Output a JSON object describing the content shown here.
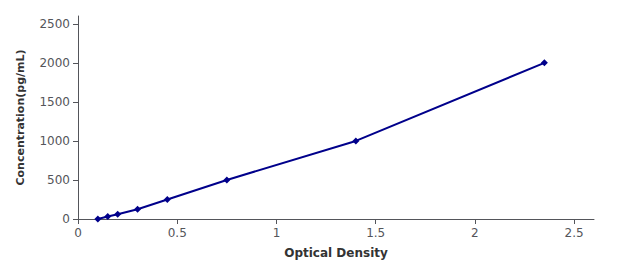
{
  "chart_data": {
    "type": "line",
    "x": [
      0.1,
      0.15,
      0.2,
      0.3,
      0.45,
      0.75,
      1.4,
      2.35
    ],
    "values": [
      0,
      31,
      62,
      125,
      250,
      500,
      1000,
      2000
    ],
    "color": "#00008B",
    "marker": "diamond",
    "line_style": "solid",
    "xlabel": "Optical Density",
    "ylabel": "Concentration(pg/mL)",
    "xlim": [
      0,
      2.6
    ],
    "ylim": [
      0,
      2600
    ],
    "xticks": [
      0,
      0.5,
      1,
      1.5,
      2,
      2.5
    ],
    "yticks": [
      0,
      500,
      1000,
      1500,
      2000,
      2500
    ],
    "grid": false
  }
}
